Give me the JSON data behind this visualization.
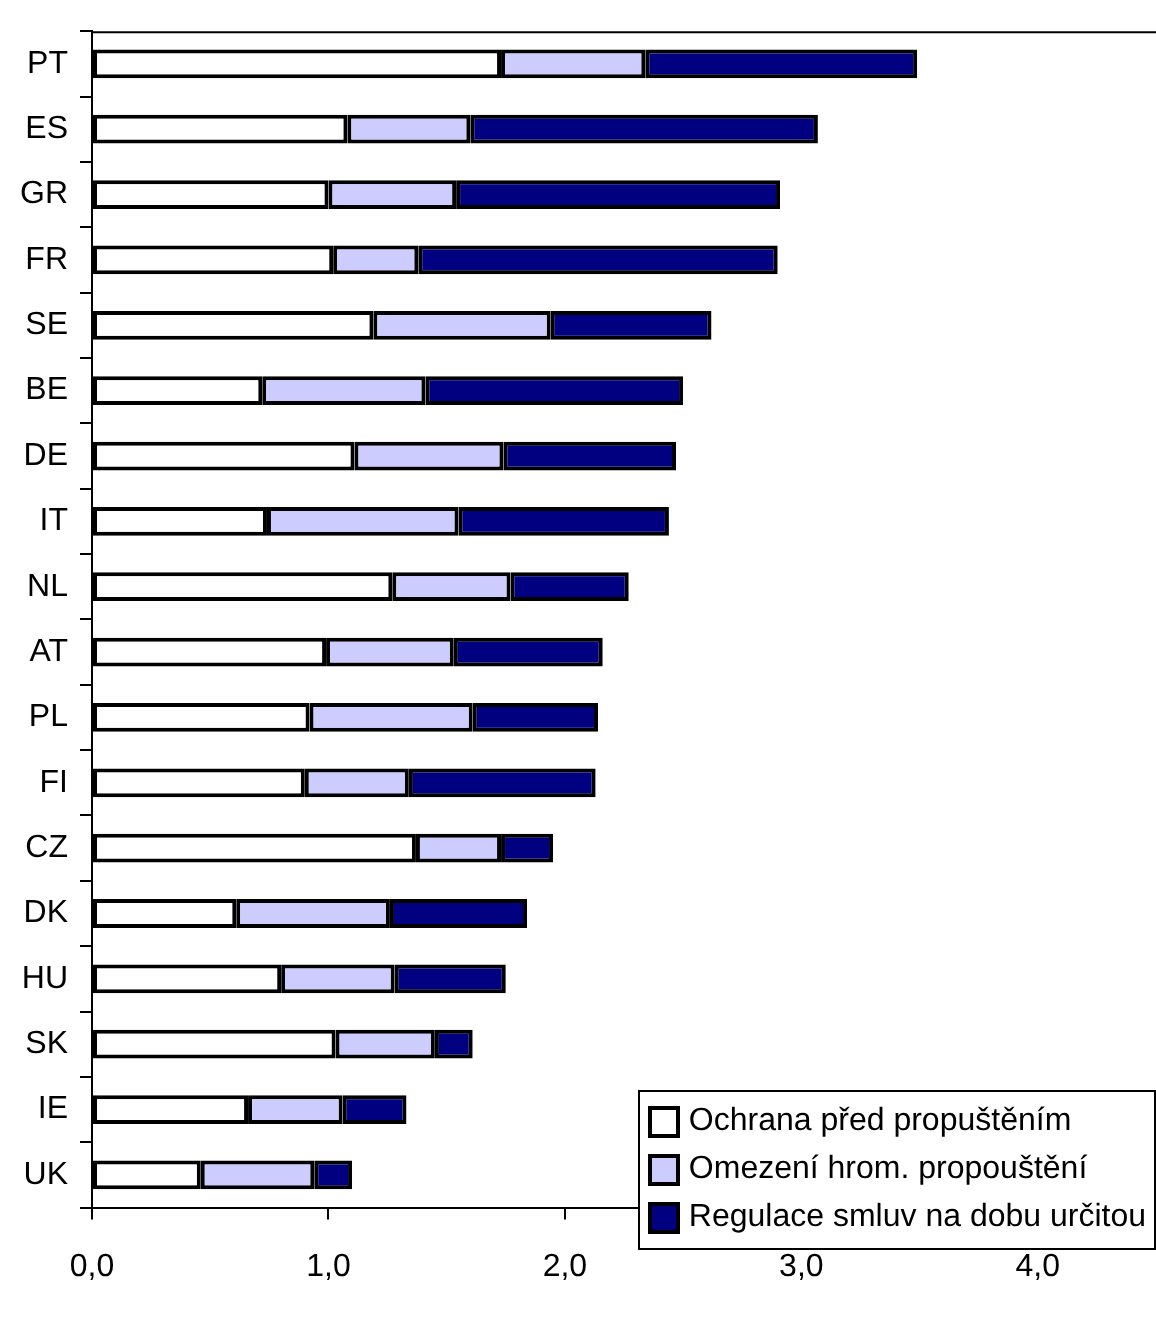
{
  "chart_data": {
    "type": "bar",
    "orientation": "horizontal",
    "stacked": true,
    "categories": [
      "PT",
      "ES",
      "GR",
      "FR",
      "SE",
      "BE",
      "DE",
      "IT",
      "NL",
      "AT",
      "PL",
      "FI",
      "CZ",
      "DK",
      "HU",
      "SK",
      "IE",
      "UK"
    ],
    "series": [
      {
        "name": "Ochrana před propuštěním",
        "color": "#ffffff",
        "values": [
          1.73,
          1.08,
          1.0,
          1.02,
          1.19,
          0.72,
          1.11,
          0.74,
          1.27,
          0.99,
          0.92,
          0.9,
          1.37,
          0.61,
          0.8,
          1.03,
          0.66,
          0.46
        ]
      },
      {
        "name": "Omezení hrom. propouštění",
        "color": "#ccccff",
        "values": [
          0.61,
          0.52,
          0.54,
          0.36,
          0.75,
          0.69,
          0.63,
          0.81,
          0.5,
          0.54,
          0.69,
          0.44,
          0.36,
          0.65,
          0.48,
          0.42,
          0.4,
          0.48
        ]
      },
      {
        "name": "Regulace smluv na dobu určitou",
        "color": "#000080",
        "values": [
          1.15,
          1.47,
          1.37,
          1.52,
          0.68,
          1.09,
          0.73,
          0.89,
          0.5,
          0.63,
          0.53,
          0.79,
          0.22,
          0.58,
          0.47,
          0.16,
          0.27,
          0.16
        ]
      }
    ],
    "xlim": [
      0,
      4.5
    ],
    "xticks": [
      {
        "value": 0,
        "label": "0,0"
      },
      {
        "value": 1,
        "label": "1,0"
      },
      {
        "value": 2,
        "label": "2,0"
      },
      {
        "value": 3,
        "label": "3,0"
      },
      {
        "value": 4,
        "label": "4,0"
      }
    ],
    "grid": false,
    "legend": "bottom right"
  }
}
